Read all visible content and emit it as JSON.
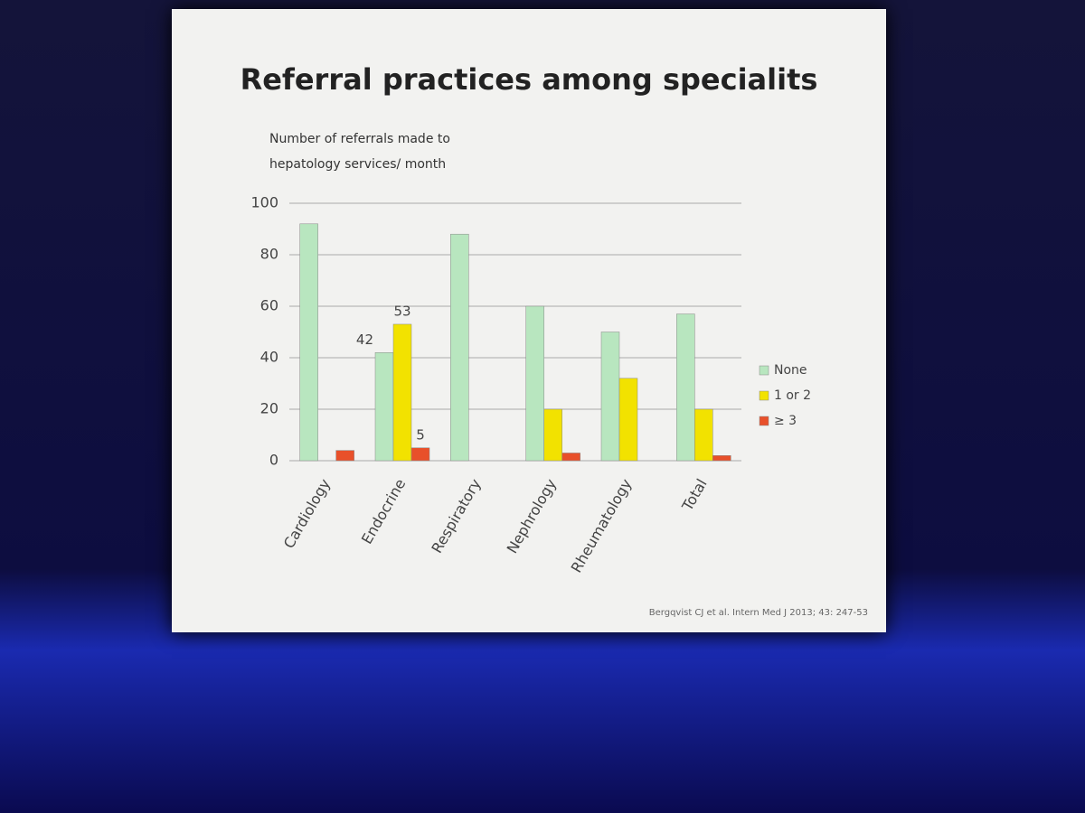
{
  "chart_data": {
    "type": "bar",
    "title": "Referral practices among specialits",
    "ylabel": "Number of referrals made to hepatology services/ month",
    "categories": [
      "Cardiology",
      "Endocrine",
      "Respiratory",
      "Nephrology",
      "Rheumatology",
      "Total"
    ],
    "series": [
      {
        "name": "None",
        "color": "#b8e6bf",
        "values": [
          92,
          42,
          88,
          60,
          50,
          57
        ]
      },
      {
        "name": "1 or 2",
        "color": "#f2e200",
        "values": [
          0,
          53,
          0,
          20,
          32,
          20
        ],
        "value_labels": [
          null,
          "53",
          null,
          null,
          null,
          null
        ]
      },
      {
        "name": "≥ 3",
        "color": "#e8502a",
        "values": [
          4,
          5,
          0,
          3,
          0,
          2
        ],
        "value_labels": [
          null,
          "5",
          null,
          null,
          null,
          null
        ]
      }
    ],
    "none_labels": [
      null,
      "42",
      null,
      null,
      null,
      null
    ],
    "ylim": [
      0,
      100
    ],
    "yticks": [
      0,
      20,
      40,
      60,
      80,
      100
    ],
    "grid": true,
    "source": "Bergqvist CJ et al. Intern Med J 2013; 43: 247-53"
  }
}
